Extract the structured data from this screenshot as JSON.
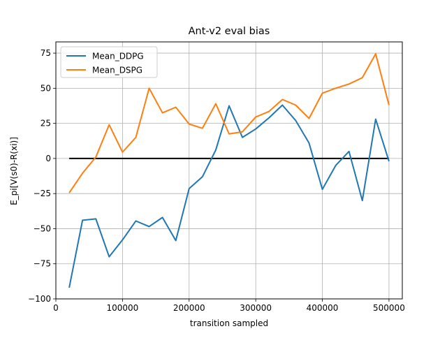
{
  "chart_data": {
    "type": "line",
    "title": "Ant-v2 eval bias",
    "xlabel": "transition sampled",
    "ylabel": "E_pi[V(s0)-R(xi)]",
    "xlim": [
      0,
      520000
    ],
    "ylim": [
      -100,
      83
    ],
    "x_ticks": [
      0,
      100000,
      200000,
      300000,
      400000,
      500000
    ],
    "x_tick_labels": [
      "0",
      "100000",
      "200000",
      "300000",
      "400000",
      "500000"
    ],
    "y_ticks": [
      -100,
      -75,
      -50,
      -25,
      0,
      25,
      50,
      75
    ],
    "y_tick_labels": [
      "−100",
      "−75",
      "−50",
      "−25",
      "0",
      "25",
      "50",
      "75"
    ],
    "grid": true,
    "legend_position": "top-left",
    "x": [
      20000,
      40000,
      60000,
      80000,
      100000,
      120000,
      140000,
      160000,
      180000,
      200000,
      220000,
      240000,
      260000,
      280000,
      300000,
      320000,
      340000,
      360000,
      380000,
      400000,
      420000,
      440000,
      460000,
      480000,
      500000
    ],
    "series": [
      {
        "name": "Mean_DDPG",
        "color": "#1f77b4",
        "values": [
          -92,
          -44,
          -43,
          -70,
          -58,
          -44.5,
          -48.5,
          -42,
          -58.5,
          -21.5,
          -13,
          6,
          37.5,
          15,
          21,
          29,
          38,
          27,
          11,
          -22,
          -5,
          5,
          -30,
          28,
          -2
        ]
      },
      {
        "name": "Mean_DSPG",
        "color": "#ff7f0e",
        "values": [
          -24.5,
          -10.5,
          1,
          24,
          4.5,
          15,
          50,
          32.5,
          36.5,
          24.5,
          21.5,
          39,
          17.5,
          19,
          29.5,
          33.5,
          42,
          38,
          28.5,
          46.5,
          50,
          53,
          57.5,
          74.5,
          38
        ]
      }
    ],
    "reference_line": {
      "y": 0,
      "x_range": [
        20000,
        500000
      ],
      "color": "#000000"
    }
  }
}
